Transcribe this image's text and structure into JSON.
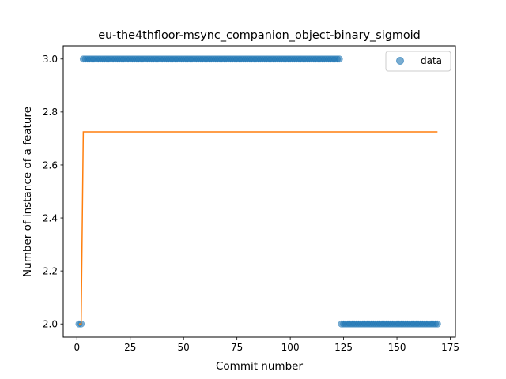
{
  "chart_data": {
    "type": "scatter",
    "title": "eu-the4thfloor-msync_companion_object-binary_sigmoid",
    "xlabel": "Commit number",
    "ylabel": "Number of instance of a feature",
    "xlim": [
      -6.4,
      177.4
    ],
    "ylim": [
      1.95,
      3.05
    ],
    "xticks": [
      0,
      25,
      50,
      75,
      100,
      125,
      150,
      175
    ],
    "yticks": [
      2.0,
      2.2,
      2.4,
      2.6,
      2.8,
      3.0
    ],
    "ytick_labels": [
      "2.0",
      "2.2",
      "2.4",
      "2.6",
      "2.8",
      "3.0"
    ],
    "legend": {
      "position": "top-right",
      "entries": [
        "data"
      ]
    },
    "grid": false,
    "series": [
      {
        "name": "data",
        "kind": "scatter",
        "color": "#1f77b4",
        "segments": [
          {
            "x_from": 1,
            "x_to": 2,
            "y": 2.0
          },
          {
            "x_from": 3,
            "x_to": 123,
            "y": 3.0
          },
          {
            "x_from": 124,
            "x_to": 169,
            "y": 2.0
          }
        ]
      },
      {
        "kind": "line",
        "color": "#ff7f0e",
        "x": [
          1,
          2,
          3,
          169
        ],
        "y": [
          2.0,
          2.0,
          2.725,
          2.725
        ]
      }
    ]
  }
}
